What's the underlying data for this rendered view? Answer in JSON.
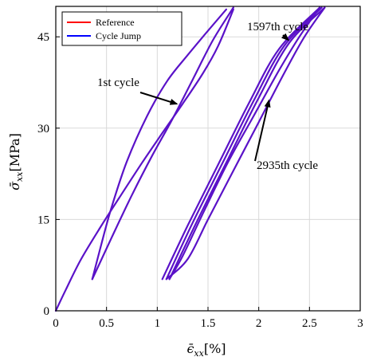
{
  "chart_data": {
    "type": "line",
    "xlabel": {
      "symbol": "ϵ̄",
      "sub": "xx",
      "unit": "[%]"
    },
    "ylabel": {
      "symbol": "σ̄",
      "sub": "xx",
      "unit": "[MPa]"
    },
    "xlim": [
      0,
      3
    ],
    "ylim": [
      0,
      50
    ],
    "xticks": [
      0,
      0.5,
      1,
      1.5,
      2,
      2.5,
      3
    ],
    "yticks": [
      0,
      15,
      30,
      45
    ],
    "xtick_labels": [
      "0",
      "0.5",
      "1",
      "1.5",
      "2",
      "2.5",
      "3"
    ],
    "ytick_labels": [
      "0",
      "15",
      "30",
      "45"
    ],
    "grid": true,
    "legend": {
      "placement": "top-left",
      "entries": [
        {
          "name": "Reference",
          "color": "#ff0000"
        },
        {
          "name": "Cycle Jump",
          "color": "#0000ff"
        }
      ]
    },
    "curve_color": "#5a12c8",
    "annotations": [
      {
        "text": "1st cycle",
        "arrow_to": [
          1.19,
          34
        ]
      },
      {
        "text": "1597th cycle",
        "arrow_to": [
          2.29,
          44.5
        ]
      },
      {
        "text": "2935th cycle",
        "arrow_to": [
          2.1,
          34.5
        ]
      }
    ],
    "series": [
      {
        "segments": [
          [
            [
              0,
              0
            ],
            [
              0.1,
              3.5
            ],
            [
              0.25,
              8.5
            ],
            [
              0.45,
              14
            ],
            [
              0.65,
              19.2
            ],
            [
              0.85,
              24.3
            ],
            [
              1.05,
              29.2
            ],
            [
              1.25,
              34
            ],
            [
              1.45,
              39
            ],
            [
              1.6,
              43.5
            ],
            [
              1.75,
              49.5
            ]
          ],
          [
            [
              1.68,
              49.5
            ],
            [
              1.5,
              46
            ],
            [
              1.3,
              42
            ],
            [
              1.1,
              37.8
            ],
            [
              0.9,
              32
            ],
            [
              0.7,
              24.5
            ],
            [
              0.55,
              17
            ],
            [
              0.45,
              11
            ],
            [
              0.36,
              5.2
            ]
          ],
          [
            [
              0.36,
              5.2
            ],
            [
              0.55,
              12
            ],
            [
              0.75,
              19
            ],
            [
              0.95,
              25.5
            ],
            [
              1.15,
              31.5
            ],
            [
              1.35,
              38
            ],
            [
              1.55,
              44.5
            ],
            [
              1.75,
              49.8
            ]
          ]
        ]
      },
      {
        "segments": [
          [
            [
              1.05,
              5.2
            ],
            [
              1.3,
              14
            ],
            [
              1.6,
              24
            ],
            [
              1.9,
              34
            ],
            [
              2.2,
              43
            ],
            [
              2.6,
              49.8
            ]
          ],
          [
            [
              2.6,
              49.8
            ],
            [
              2.4,
              45
            ],
            [
              2.2,
              39.5
            ],
            [
              1.95,
              32
            ],
            [
              1.7,
              24.5
            ],
            [
              1.45,
              16
            ],
            [
              1.25,
              9
            ],
            [
              1.12,
              5.2
            ]
          ],
          [
            [
              1.12,
              5.2
            ],
            [
              1.4,
              15
            ],
            [
              1.7,
              25
            ],
            [
              2,
              35
            ],
            [
              2.3,
              44
            ],
            [
              2.65,
              49.8
            ]
          ],
          [
            [
              2.65,
              49.8
            ],
            [
              2.45,
              45
            ],
            [
              2.25,
              39
            ],
            [
              2,
              31
            ],
            [
              1.75,
              23
            ],
            [
              1.5,
              15
            ],
            [
              1.3,
              8.5
            ],
            [
              1.09,
              5.2
            ]
          ],
          [
            [
              1.09,
              5.2
            ],
            [
              1.35,
              14.5
            ],
            [
              1.65,
              24.5
            ],
            [
              1.95,
              34.5
            ],
            [
              2.25,
              43.5
            ],
            [
              2.62,
              49.8
            ]
          ]
        ]
      }
    ]
  }
}
